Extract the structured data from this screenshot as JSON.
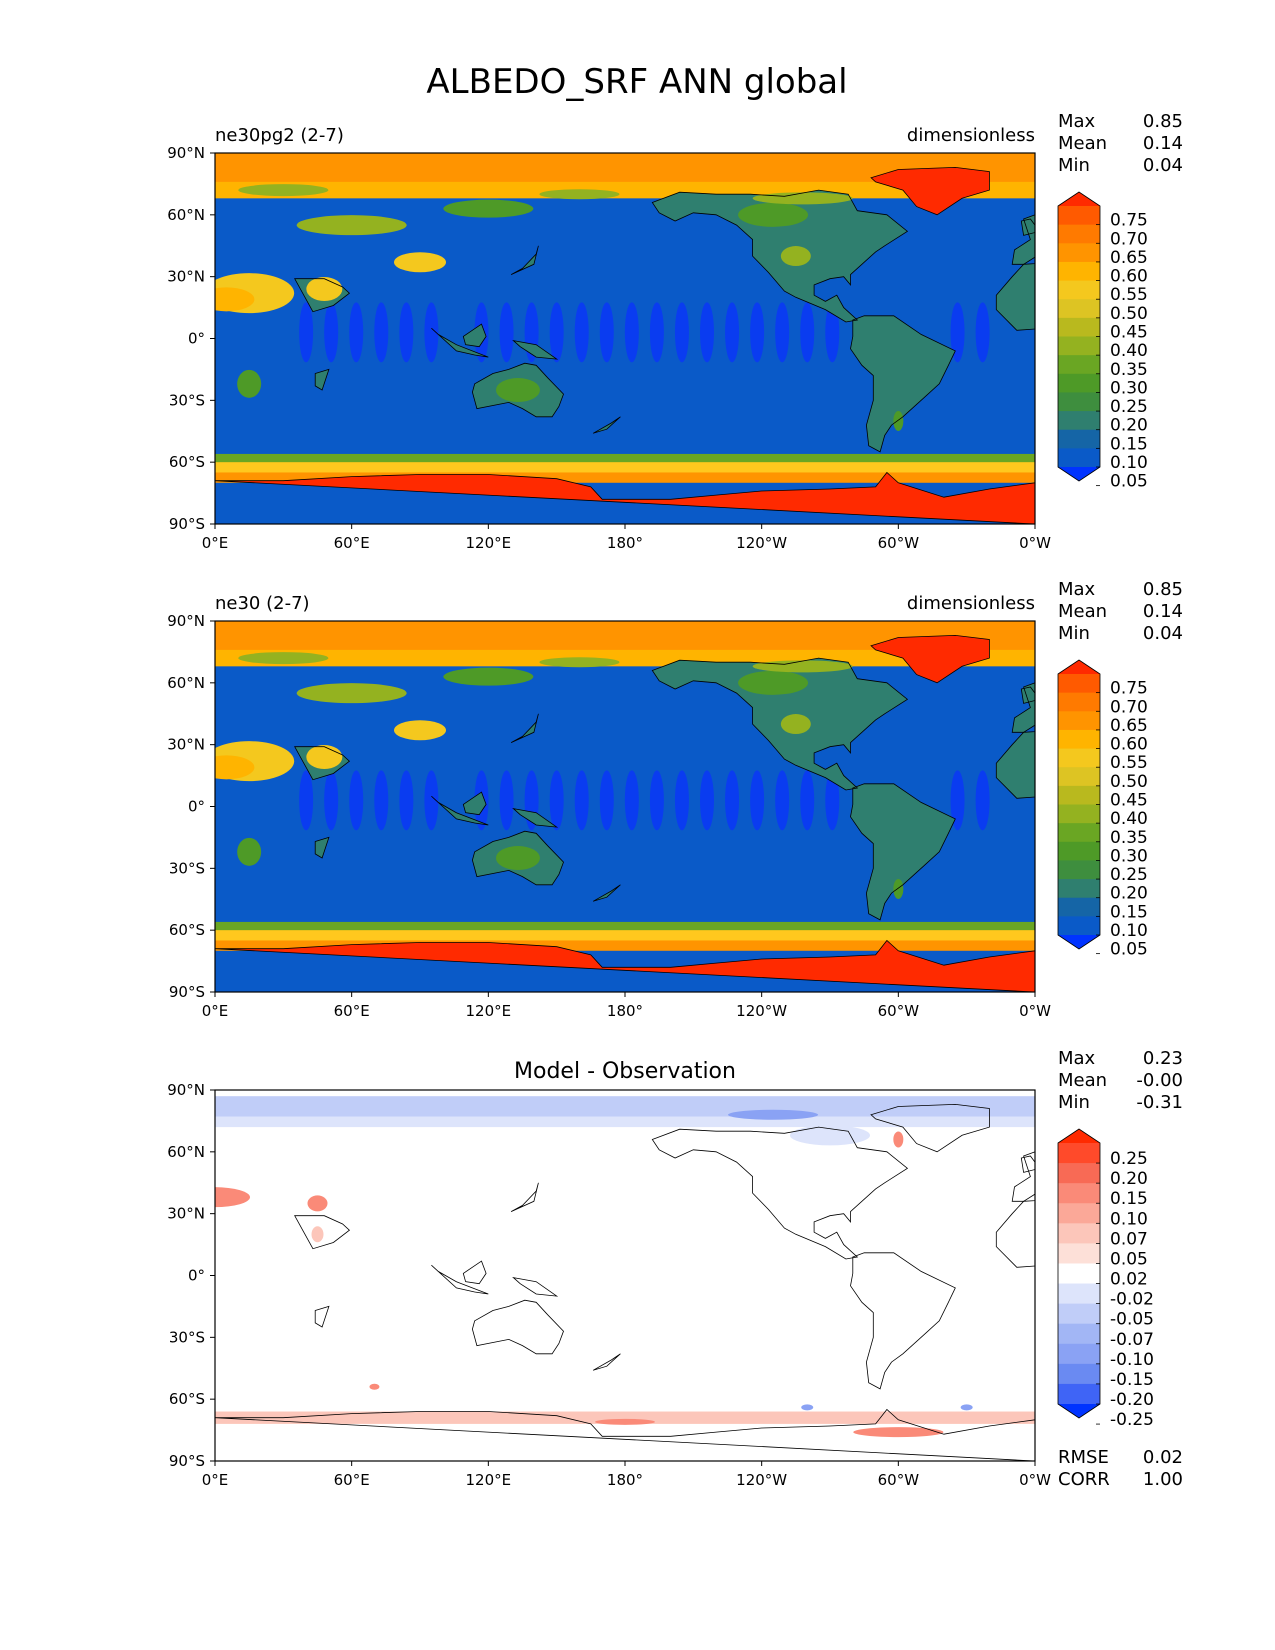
{
  "figure": {
    "title": "ALBEDO_SRF ANN global"
  },
  "chart_data": [
    {
      "type": "heatmap",
      "kind": "contour-map",
      "left_title": "ne30pg2 (2-7)",
      "center_title": "",
      "right_title": "dimensionless",
      "stats": [
        {
          "label": "Max",
          "value": "0.85"
        },
        {
          "label": "Mean",
          "value": "0.14"
        },
        {
          "label": "Min",
          "value": "0.04"
        }
      ],
      "xticks": [
        "0°E",
        "60°E",
        "120°E",
        "180°",
        "120°W",
        "60°W",
        "0°W"
      ],
      "yticks": [
        "90°N",
        "60°N",
        "30°N",
        "0°",
        "30°S",
        "60°S",
        "90°S"
      ],
      "xlim": [
        0,
        360
      ],
      "ylim": [
        -90,
        90
      ],
      "colorbar": {
        "labels": [
          "0.75",
          "0.70",
          "0.65",
          "0.60",
          "0.55",
          "0.50",
          "0.45",
          "0.40",
          "0.35",
          "0.30",
          "0.25",
          "0.20",
          "0.15",
          "0.10",
          "0.05"
        ],
        "colors": [
          "#ff2a00",
          "#ff5a00",
          "#ff7a00",
          "#ff9400",
          "#ffb400",
          "#f4c81e",
          "#ddc423",
          "#b9b91e",
          "#94b220",
          "#6aa623",
          "#4e9a27",
          "#3e8e3e",
          "#2f7f6f",
          "#1565a6",
          "#0a5ac8",
          "#0033ff"
        ],
        "extend": "both"
      },
      "features": {
        "ocean": "#0a5ac8",
        "tropical_ocean": "#0a3cf0",
        "sea_ice_north": "#ff9400",
        "sea_ice_south": "#ffc81e",
        "antarctica": "#ff2a00",
        "greenland": "#ff2a00",
        "forest": "#2f7f6f",
        "grass": "#4e9a27",
        "shrub": "#94b220",
        "desert": "#f4c81e",
        "tundra": "#ffb400"
      },
      "footer": []
    },
    {
      "type": "heatmap",
      "kind": "contour-map",
      "left_title": "ne30 (2-7)",
      "center_title": "",
      "right_title": "dimensionless",
      "stats": [
        {
          "label": "Max",
          "value": "0.85"
        },
        {
          "label": "Mean",
          "value": "0.14"
        },
        {
          "label": "Min",
          "value": "0.04"
        }
      ],
      "xticks": [
        "0°E",
        "60°E",
        "120°E",
        "180°",
        "120°W",
        "60°W",
        "0°W"
      ],
      "yticks": [
        "90°N",
        "60°N",
        "30°N",
        "0°",
        "30°S",
        "60°S",
        "90°S"
      ],
      "xlim": [
        0,
        360
      ],
      "ylim": [
        -90,
        90
      ],
      "colorbar": {
        "labels": [
          "0.75",
          "0.70",
          "0.65",
          "0.60",
          "0.55",
          "0.50",
          "0.45",
          "0.40",
          "0.35",
          "0.30",
          "0.25",
          "0.20",
          "0.15",
          "0.10",
          "0.05"
        ],
        "colors": [
          "#ff2a00",
          "#ff5a00",
          "#ff7a00",
          "#ff9400",
          "#ffb400",
          "#f4c81e",
          "#ddc423",
          "#b9b91e",
          "#94b220",
          "#6aa623",
          "#4e9a27",
          "#3e8e3e",
          "#2f7f6f",
          "#1565a6",
          "#0a5ac8",
          "#0033ff"
        ],
        "extend": "both"
      },
      "features": {
        "ocean": "#0a5ac8",
        "tropical_ocean": "#0a3cf0",
        "sea_ice_north": "#ff9400",
        "sea_ice_south": "#ffc81e",
        "antarctica": "#ff2a00",
        "greenland": "#ff2a00",
        "forest": "#2f7f6f",
        "grass": "#4e9a27",
        "shrub": "#94b220",
        "desert": "#f4c81e",
        "tundra": "#ffb400"
      },
      "footer": []
    },
    {
      "type": "heatmap",
      "kind": "contour-map-difference",
      "left_title": "",
      "center_title": "Model - Observation",
      "right_title": "",
      "stats": [
        {
          "label": "Max",
          "value": "0.23"
        },
        {
          "label": "Mean",
          "value": "-0.00"
        },
        {
          "label": "Min",
          "value": "-0.31"
        }
      ],
      "xticks": [
        "0°E",
        "60°E",
        "120°E",
        "180°",
        "120°W",
        "60°W",
        "0°W"
      ],
      "yticks": [
        "90°N",
        "60°N",
        "30°N",
        "0°",
        "30°S",
        "60°S",
        "90°S"
      ],
      "xlim": [
        0,
        360
      ],
      "ylim": [
        -90,
        90
      ],
      "colorbar": {
        "labels": [
          "0.25",
          "0.20",
          "0.15",
          "0.10",
          "0.07",
          "0.05",
          "0.02",
          "-0.02",
          "-0.05",
          "-0.07",
          "-0.10",
          "-0.15",
          "-0.20",
          "-0.25"
        ],
        "colors": [
          "#ff2a00",
          "#ff4a2a",
          "#f86a55",
          "#fa8a78",
          "#fba898",
          "#fcc6ba",
          "#fde0d8",
          "#ffffff",
          "#dde4fb",
          "#c0cdf8",
          "#a2b6f5",
          "#8aa2f4",
          "#6a8af2",
          "#3f64f6",
          "#0033ff"
        ],
        "extend": "both"
      },
      "features": {
        "background": "#ffffff",
        "arctic": "#c0cdf8",
        "arctic_light": "#dde4fb",
        "positive": "#fa8a78",
        "positive_light": "#fcc6ba",
        "negative": "#8aa2f4"
      },
      "footer": [
        {
          "label": "RMSE",
          "value": "0.02"
        },
        {
          "label": "CORR",
          "value": "1.00"
        }
      ]
    }
  ]
}
